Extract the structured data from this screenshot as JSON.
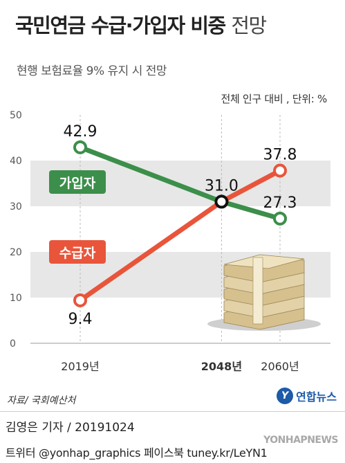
{
  "header": {
    "title_main": "국민연금 수급·가입자 비중",
    "title_light": "전망",
    "subtitle": "현행 보험료율 9% 유지 시 전망",
    "unit": "전체 인구 대비 , 단위: %"
  },
  "footer": {
    "source": "자료/ 국회예산처",
    "agency": "연합뉴스",
    "author_line": "김영은 기자 / 20191024",
    "social": "트위터 @yonhap_graphics  페이스북 tuney.kr/LeYN1",
    "watermark": "YONHAPNEWS"
  },
  "chart_data": {
    "type": "line",
    "categories": [
      "2019년",
      "2048년",
      "2060년"
    ],
    "x": [
      2019,
      2048,
      2060
    ],
    "series": [
      {
        "name": "가입자",
        "values": [
          42.9,
          31.0,
          27.3
        ],
        "color": "#3c8f4a"
      },
      {
        "name": "수급자",
        "values": [
          9.4,
          31.0,
          37.8
        ],
        "color": "#e8553b"
      }
    ],
    "intersection": {
      "label": "31.0",
      "x": 2048,
      "y": 31.0
    },
    "data_labels": [
      "42.9",
      "31.0",
      "27.3",
      "9.4",
      "37.8"
    ],
    "ylim": [
      0,
      50
    ],
    "yticks": [
      "0",
      "10",
      "20",
      "30",
      "40",
      "50"
    ],
    "title": "",
    "xlabel": "",
    "ylabel": "",
    "grid": "alternating bands",
    "decoration": "money-stack-icon"
  }
}
